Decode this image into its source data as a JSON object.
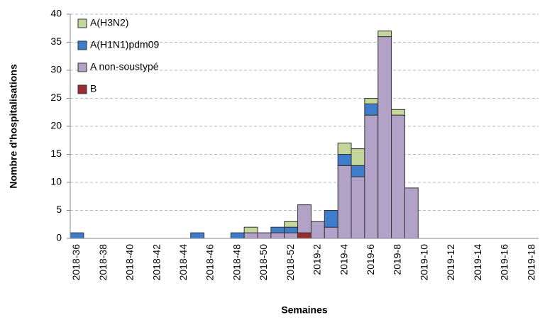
{
  "chart_data": {
    "type": "stacked-bar",
    "x_label": "Semaines",
    "y_label": "Nombre d'hospitalisations",
    "categories": [
      "2018-36",
      null,
      "2018-38",
      null,
      "2018-40",
      null,
      "2018-42",
      null,
      "2018-44",
      null,
      "2018-46",
      null,
      "2018-48",
      null,
      "2018-50",
      null,
      "2018-52",
      null,
      "2019-2",
      null,
      "2019-4",
      null,
      "2019-6",
      null,
      "2019-8",
      null,
      "2019-10",
      null,
      "2019-12",
      null,
      "2019-14",
      null,
      "2019-16",
      null,
      "2019-18"
    ],
    "series": [
      {
        "name": "A(H3N2)",
        "color": "#c4d79b",
        "values": [
          0,
          0,
          0,
          0,
          0,
          0,
          0,
          0,
          0,
          0,
          0,
          0,
          0,
          1,
          0,
          0,
          1,
          0,
          0,
          0,
          2,
          3,
          1,
          1,
          1,
          0,
          0,
          0,
          0,
          0,
          0,
          0,
          0,
          0,
          0
        ]
      },
      {
        "name": "A(H1N1)pdm09",
        "color": "#3e7dcc",
        "values": [
          1,
          0,
          0,
          0,
          0,
          0,
          0,
          0,
          0,
          1,
          0,
          0,
          1,
          0,
          0,
          1,
          1,
          0,
          0,
          3,
          2,
          2,
          2,
          0,
          0,
          0,
          0,
          0,
          0,
          0,
          0,
          0,
          0,
          0,
          0
        ]
      },
      {
        "name": "A non-soustypé",
        "color": "#b3a2c7",
        "values": [
          0,
          0,
          0,
          0,
          0,
          0,
          0,
          0,
          0,
          0,
          0,
          0,
          0,
          1,
          1,
          1,
          1,
          5,
          3,
          2,
          13,
          11,
          22,
          36,
          22,
          9,
          0,
          0,
          0,
          0,
          0,
          0,
          0,
          0,
          0
        ]
      },
      {
        "name": "B",
        "color": "#9b2d30",
        "values": [
          0,
          0,
          0,
          0,
          0,
          0,
          0,
          0,
          0,
          0,
          0,
          0,
          0,
          0,
          0,
          0,
          0,
          1,
          0,
          0,
          0,
          0,
          0,
          0,
          0,
          0,
          0,
          0,
          0,
          0,
          0,
          0,
          0,
          0,
          0
        ]
      }
    ],
    "ylim": [
      0,
      40
    ],
    "yticks": [
      0,
      5,
      10,
      15,
      20,
      25,
      30,
      35,
      40
    ],
    "grid": true,
    "legend": "upper-left"
  }
}
